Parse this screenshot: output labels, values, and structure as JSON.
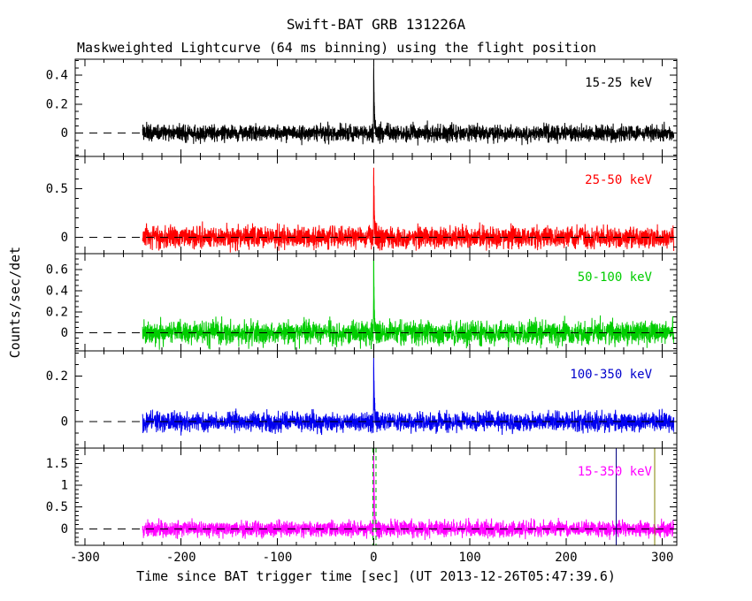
{
  "chart_data": {
    "type": "line",
    "title": "Swift-BAT GRB 131226A",
    "subtitle": "Maskweighted Lightcurve (64 ms binning) using the flight position",
    "xlabel": "Time since BAT trigger time [sec] (UT 2013-12-26T05:47:39.6)",
    "ylabel": "Counts/sec/det",
    "xlim": [
      -310,
      315
    ],
    "x_major_ticks": [
      -300,
      -200,
      -100,
      0,
      100,
      200,
      300
    ],
    "x_minor_step": 20,
    "data_start": -240,
    "data_end": 312,
    "bin_seconds": 0.064,
    "burst": {
      "t_peak": 0.15,
      "rise_sigma": 0.15,
      "decay_tau": 0.6
    },
    "zero_line": {
      "color": "#000000",
      "style": "dashed"
    },
    "panels": [
      {
        "label": "15-25 keV",
        "color": "#000000",
        "label_color": "#000000",
        "ylim": [
          -0.16,
          0.51
        ],
        "y_ticks": [
          0,
          0.2,
          0.4
        ],
        "y_minor_step": 0.05,
        "noise_sigma": 0.028,
        "burst_peak": 0.45
      },
      {
        "label": "25-50 keV",
        "color": "#ff0000",
        "label_color": "#ff0000",
        "ylim": [
          -0.17,
          0.83
        ],
        "y_ticks": [
          0,
          0.5
        ],
        "y_minor_step": 0.1,
        "noise_sigma": 0.055,
        "burst_peak": 0.7
      },
      {
        "label": "50-100 keV",
        "color": "#00cc00",
        "label_color": "#00cc00",
        "ylim": [
          -0.17,
          0.75
        ],
        "y_ticks": [
          0,
          0.2,
          0.4,
          0.6
        ],
        "y_minor_step": 0.05,
        "noise_sigma": 0.055,
        "burst_peak": 0.68
      },
      {
        "label": "100-350 keV",
        "color": "#0000ee",
        "label_color": "#0000cc",
        "ylim": [
          -0.115,
          0.31
        ],
        "y_ticks": [
          0,
          0.2
        ],
        "y_minor_step": 0.05,
        "noise_sigma": 0.02,
        "burst_peak": 0.27
      },
      {
        "label": "15-350 keV",
        "color": "#ff00ff",
        "label_color": "#ff00ff",
        "ylim": [
          -0.38,
          1.85
        ],
        "y_ticks": [
          0,
          0.5,
          1,
          1.5
        ],
        "y_minor_step": 0.1,
        "noise_sigma": 0.09,
        "burst_peak": 1.8,
        "markers": [
          {
            "t": -0.9,
            "color": "#00aa00",
            "style": "dashed",
            "name": "burst-interval-start-line"
          },
          {
            "t": 2.6,
            "color": "#00aa00",
            "style": "dashed",
            "name": "burst-interval-end-line"
          },
          {
            "t": 252,
            "color": "#000080",
            "style": "solid",
            "name": "vertical-marker-navy"
          },
          {
            "t": 292,
            "color": "#808000",
            "style": "solid",
            "name": "vertical-marker-olive"
          }
        ]
      }
    ]
  }
}
